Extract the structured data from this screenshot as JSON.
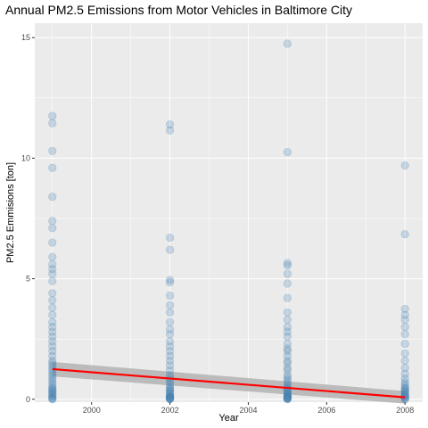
{
  "chart_data": {
    "type": "scatter",
    "title": "Annual PM2.5 Emissions from Motor Vehicles in Baltimore City",
    "xlabel": "Year",
    "ylabel": "PM2.5 Emmisions [ton]",
    "xlim": [
      1998.55,
      2008.45
    ],
    "ylim": [
      -0.12,
      15.6
    ],
    "x_ticks": [
      2000,
      2002,
      2004,
      2006,
      2008
    ],
    "x_tick_labels": [
      "2000",
      "2002",
      "2004",
      "2006",
      "2008"
    ],
    "y_ticks": [
      0,
      5,
      10,
      15
    ],
    "y_tick_labels": [
      "0",
      "5",
      "10",
      "15"
    ],
    "grid": true,
    "legend": "none",
    "point_color": "#4682B4",
    "line_color": "#ff0000",
    "band_color": "#b3b3b3",
    "series": [
      {
        "type": "scatter",
        "x": [
          1999,
          1999,
          1999,
          1999,
          1999,
          1999,
          1999,
          1999,
          1999,
          1999,
          1999,
          1999,
          1999,
          1999,
          1999,
          1999,
          1999,
          1999,
          1999,
          1999,
          1999,
          1999,
          1999,
          1999,
          1999,
          1999,
          1999,
          1999,
          1999,
          1999,
          1999,
          1999,
          1999,
          1999,
          1999,
          1999,
          1999,
          1999,
          1999,
          1999,
          1999,
          1999,
          1999,
          1999,
          1999,
          1999,
          1999,
          1999,
          2002,
          2002,
          2002,
          2002,
          2002,
          2002,
          2002,
          2002,
          2002,
          2002,
          2002,
          2002,
          2002,
          2002,
          2002,
          2002,
          2002,
          2002,
          2002,
          2002,
          2002,
          2002,
          2002,
          2002,
          2002,
          2002,
          2002,
          2002,
          2002,
          2002,
          2002,
          2002,
          2002,
          2002,
          2002,
          2002,
          2002,
          2002,
          2002,
          2002,
          2002,
          2005,
          2005,
          2005,
          2005,
          2005,
          2005,
          2005,
          2005,
          2005,
          2005,
          2005,
          2005,
          2005,
          2005,
          2005,
          2005,
          2005,
          2005,
          2005,
          2005,
          2005,
          2005,
          2005,
          2005,
          2005,
          2005,
          2005,
          2005,
          2005,
          2005,
          2005,
          2005,
          2005,
          2005,
          2005,
          2005,
          2005,
          2005,
          2005,
          2005,
          2005,
          2005,
          2005,
          2008,
          2008,
          2008,
          2008,
          2008,
          2008,
          2008,
          2008,
          2008,
          2008,
          2008,
          2008,
          2008,
          2008,
          2008,
          2008,
          2008,
          2008,
          2008,
          2008,
          2008,
          2008,
          2008,
          2008,
          2008,
          2008,
          2008,
          2008
        ],
        "y": [
          11.75,
          11.45,
          10.3,
          9.6,
          8.4,
          7.4,
          7.1,
          6.5,
          5.9,
          5.6,
          5.4,
          5.2,
          4.9,
          4.4,
          4.1,
          3.8,
          3.5,
          3.2,
          3.0,
          2.8,
          2.6,
          2.4,
          2.2,
          2.0,
          1.8,
          1.6,
          1.5,
          1.4,
          1.3,
          1.2,
          1.1,
          1.0,
          0.9,
          0.8,
          0.7,
          0.6,
          0.5,
          0.45,
          0.4,
          0.35,
          0.3,
          0.25,
          0.2,
          0.15,
          0.1,
          0.05,
          0.02,
          0.0,
          11.4,
          11.15,
          6.7,
          6.2,
          4.95,
          4.85,
          4.3,
          3.9,
          3.6,
          3.2,
          2.9,
          2.7,
          2.4,
          2.2,
          2.0,
          1.8,
          1.6,
          1.4,
          1.2,
          1.0,
          0.9,
          0.8,
          0.7,
          0.6,
          0.5,
          0.45,
          0.4,
          0.35,
          0.3,
          0.25,
          0.2,
          0.15,
          0.12,
          0.1,
          0.08,
          0.06,
          0.05,
          0.04,
          0.03,
          0.02,
          0.0,
          14.75,
          10.25,
          5.65,
          5.55,
          5.2,
          4.8,
          4.2,
          3.6,
          3.3,
          3.0,
          2.8,
          2.6,
          2.3,
          2.1,
          2.0,
          1.8,
          1.6,
          1.5,
          1.3,
          1.2,
          1.0,
          0.9,
          0.8,
          0.7,
          0.6,
          0.5,
          0.45,
          0.4,
          0.35,
          0.3,
          0.25,
          0.2,
          0.18,
          0.15,
          0.12,
          0.1,
          0.08,
          0.06,
          0.05,
          0.04,
          0.03,
          0.02,
          0.0,
          9.7,
          6.85,
          3.75,
          3.5,
          3.3,
          3.0,
          2.7,
          2.3,
          1.9,
          1.6,
          1.3,
          1.05,
          0.85,
          0.7,
          0.6,
          0.5,
          0.45,
          0.4,
          0.35,
          0.3,
          0.25,
          0.2,
          0.15,
          0.12,
          0.1,
          0.06,
          0.03,
          0.0
        ]
      },
      {
        "type": "linear-fit",
        "x": [
          1999,
          2008
        ],
        "y": [
          1.25,
          0.08
        ],
        "band_lower": [
          0.95,
          -0.18
        ],
        "band_upper": [
          1.55,
          0.34
        ]
      }
    ]
  }
}
